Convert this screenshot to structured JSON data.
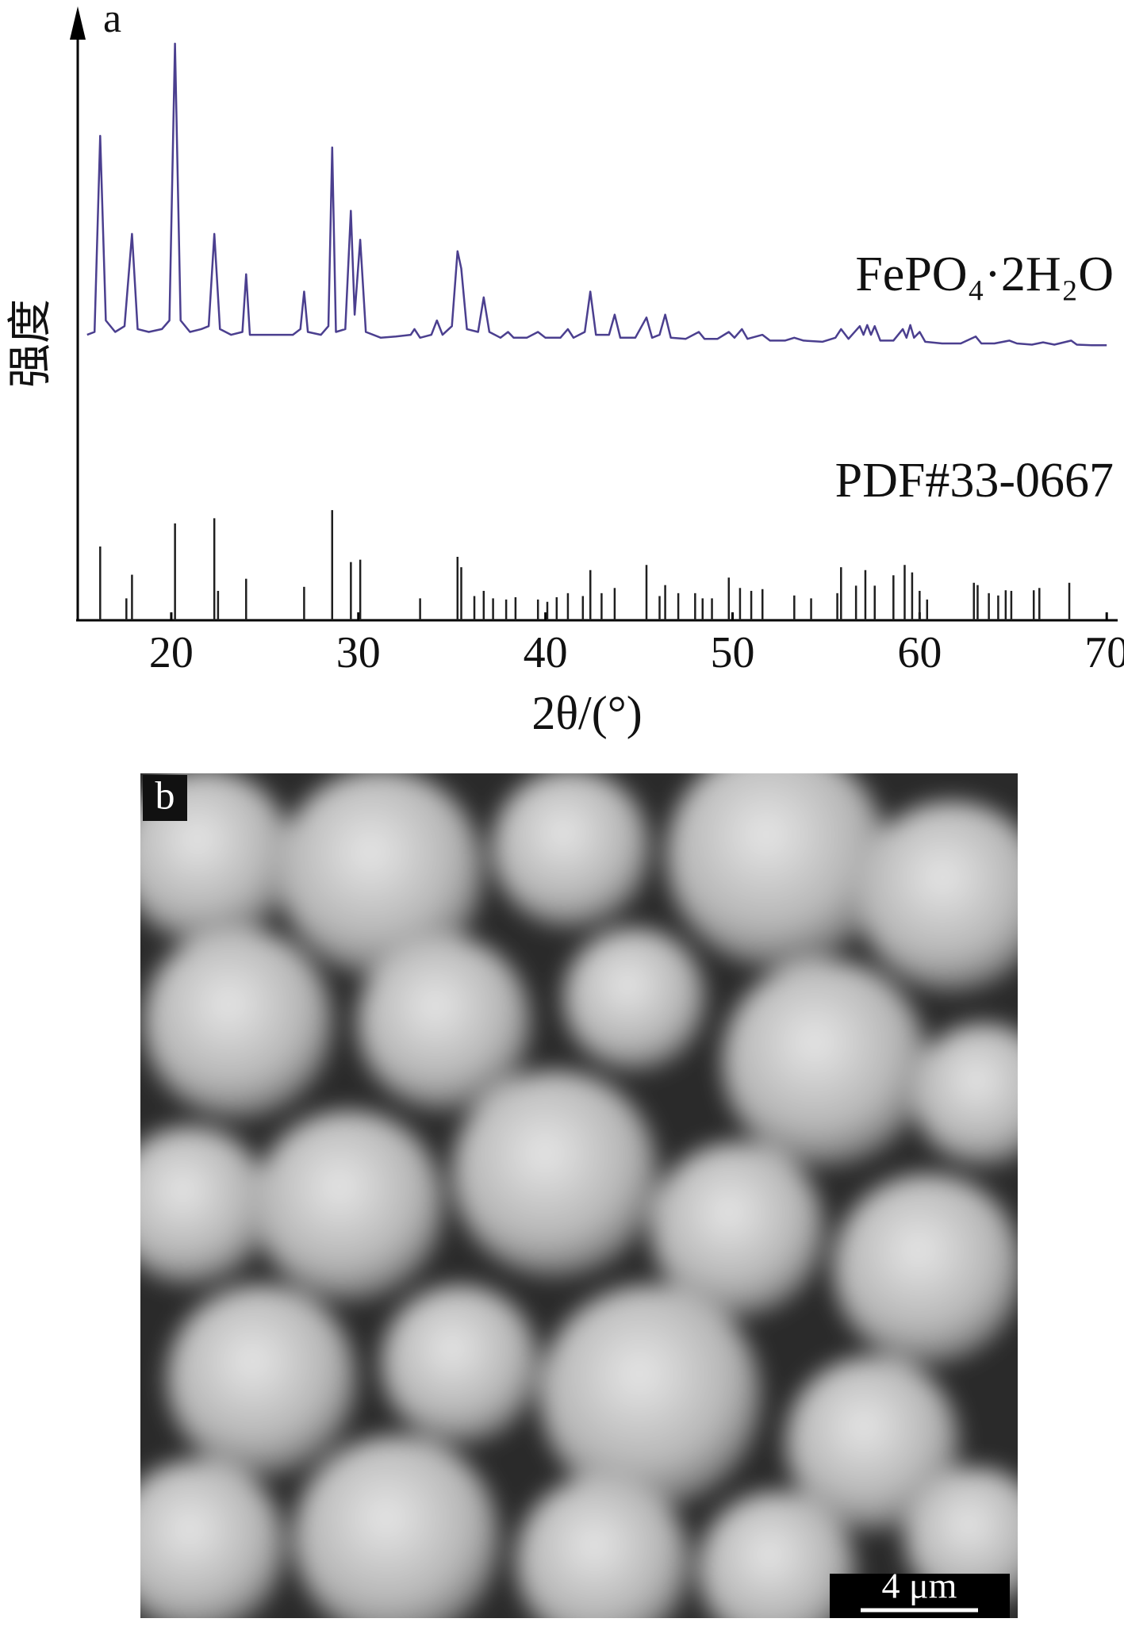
{
  "chart_data": [
    {
      "type": "line",
      "panel_label": "a",
      "xlabel": "2θ/(°)",
      "ylabel": "强度",
      "xlim": [
        15,
        70.5
      ],
      "ylim": [
        0,
        100
      ],
      "xticks": [
        20,
        30,
        40,
        50,
        60,
        70
      ],
      "grid": false,
      "x": [
        15.5,
        15.9,
        16.2,
        16.5,
        17.0,
        17.5,
        17.9,
        18.2,
        18.8,
        19.5,
        19.9,
        20.2,
        20.5,
        21.0,
        21.6,
        22.0,
        22.3,
        22.6,
        23.2,
        23.8,
        24.0,
        24.2,
        25.0,
        25.8,
        26.5,
        26.9,
        27.1,
        27.3,
        28.0,
        28.4,
        28.6,
        28.8,
        29.3,
        29.6,
        29.8,
        30.1,
        30.4,
        31.2,
        32.0,
        32.8,
        33.0,
        33.3,
        33.9,
        34.2,
        34.5,
        35.0,
        35.3,
        35.5,
        35.8,
        36.4,
        36.7,
        37.0,
        37.6,
        38.0,
        38.3,
        39.0,
        39.6,
        40.0,
        40.8,
        41.2,
        41.5,
        42.1,
        42.4,
        42.7,
        43.4,
        43.7,
        44.0,
        44.8,
        45.4,
        45.7,
        46.1,
        46.4,
        46.7,
        47.5,
        48.2,
        48.5,
        49.2,
        49.8,
        50.1,
        50.5,
        50.8,
        51.6,
        52.0,
        52.8,
        53.3,
        53.8,
        54.8,
        55.5,
        55.8,
        56.2,
        56.8,
        57.0,
        57.2,
        57.4,
        57.6,
        57.9,
        58.6,
        59.1,
        59.3,
        59.5,
        59.7,
        60.0,
        60.3,
        61.2,
        62.2,
        63.0,
        63.3,
        64.0,
        64.8,
        65.2,
        66.0,
        66.6,
        67.2,
        68.1,
        68.4,
        69.2,
        70.0
      ],
      "series": [
        {
          "name": "FePO₄·2H₂O",
          "color": "#4b3f8f",
          "values": [
            49.5,
            50,
            84,
            52,
            50,
            51,
            67,
            50.5,
            50,
            50.5,
            52,
            100,
            52,
            50,
            50.5,
            51,
            67,
            50.5,
            49.5,
            50,
            60,
            49.5,
            49.5,
            49.5,
            49.5,
            50.5,
            57,
            50,
            49.5,
            51,
            82,
            50,
            50.5,
            71,
            53,
            66,
            50,
            49,
            49.2,
            49.5,
            50.5,
            49,
            49.5,
            52,
            49.5,
            51,
            64,
            61,
            50.5,
            50,
            56,
            50,
            49,
            50,
            49,
            49,
            50,
            49,
            49,
            50.5,
            49,
            50,
            57,
            49.5,
            49.5,
            53,
            49,
            49,
            52.5,
            49,
            49.5,
            53,
            49,
            48.8,
            50,
            48.8,
            48.8,
            50,
            49,
            50.5,
            48.8,
            49.5,
            48.5,
            48.5,
            49,
            48.5,
            48.3,
            49,
            50.5,
            48.8,
            51,
            49.5,
            51.2,
            49.5,
            51,
            48.5,
            48.5,
            50.5,
            49,
            51.2,
            49,
            50,
            48.3,
            48,
            48,
            49.2,
            48,
            48,
            48.5,
            48,
            47.8,
            48.2,
            47.8,
            48.5,
            47.8,
            47.7,
            47.7
          ]
        }
      ]
    },
    {
      "type": "stick",
      "xlim": [
        15,
        70.5
      ],
      "ylim": [
        0,
        100
      ],
      "x": [
        16.2,
        17.6,
        17.9,
        20.2,
        22.3,
        22.5,
        24.0,
        27.1,
        28.6,
        29.6,
        30.1,
        33.3,
        35.3,
        35.5,
        36.2,
        36.7,
        37.2,
        37.9,
        38.4,
        39.6,
        40.1,
        40.6,
        41.2,
        42.0,
        42.4,
        43.0,
        43.7,
        45.4,
        46.1,
        46.4,
        47.1,
        48.0,
        48.4,
        48.9,
        49.8,
        50.4,
        51.0,
        51.6,
        53.3,
        54.2,
        55.6,
        55.8,
        56.6,
        57.1,
        57.6,
        58.6,
        59.2,
        59.6,
        60.0,
        60.4,
        62.9,
        63.1,
        63.7,
        64.2,
        64.6,
        64.9,
        66.1,
        66.4,
        68.0
      ],
      "series": [
        {
          "name": "PDF#33-0667",
          "color": "#1f1f1f",
          "values": [
            12.8,
            3.8,
            7.9,
            16.8,
            17.7,
            5.1,
            7.2,
            5.8,
            19.1,
            10.1,
            10.5,
            3.8,
            11,
            9.2,
            4.2,
            5.1,
            3.8,
            3.6,
            4.0,
            3.6,
            3.2,
            4.0,
            4.7,
            4.2,
            8.7,
            4.7,
            5.6,
            9.6,
            4.2,
            6.1,
            4.7,
            4.7,
            3.8,
            3.8,
            7.4,
            5.6,
            5.1,
            5.4,
            4.3,
            3.8,
            4.7,
            9.2,
            6.0,
            8.7,
            6.0,
            7.8,
            9.6,
            8.3,
            5.1,
            3.6,
            6.5,
            6.1,
            4.7,
            4.3,
            5.2,
            5.1,
            5.2,
            5.6,
            6.5
          ]
        }
      ]
    }
  ],
  "image_panel": {
    "label": "b",
    "scale_bar": "4 μm"
  }
}
